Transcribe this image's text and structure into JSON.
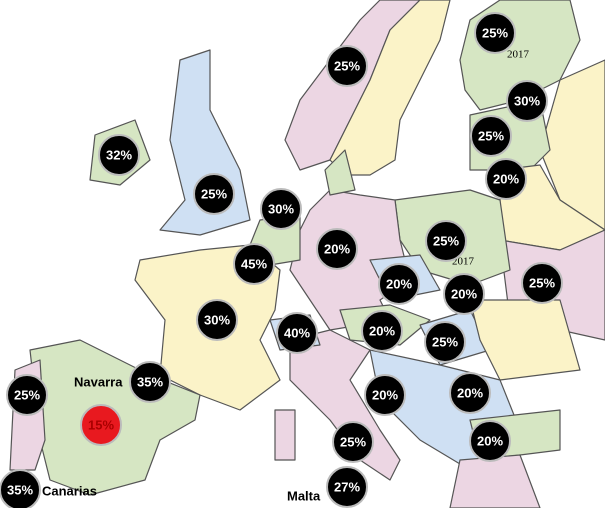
{
  "markers": [
    "25%",
    "25%",
    "30%",
    "32%",
    "25%",
    "20%",
    "25%",
    "30%",
    "20%",
    "25%",
    "45%",
    "20%",
    "20%",
    "25%",
    "30%",
    "40%",
    "20%",
    "25%",
    "35%",
    "25%",
    "20%",
    "20%",
    "15%",
    "25%",
    "20%",
    "35%",
    "27%"
  ],
  "labels": [
    "2017",
    "2017",
    "Navarra",
    "Canarias",
    "Malta"
  ]
}
